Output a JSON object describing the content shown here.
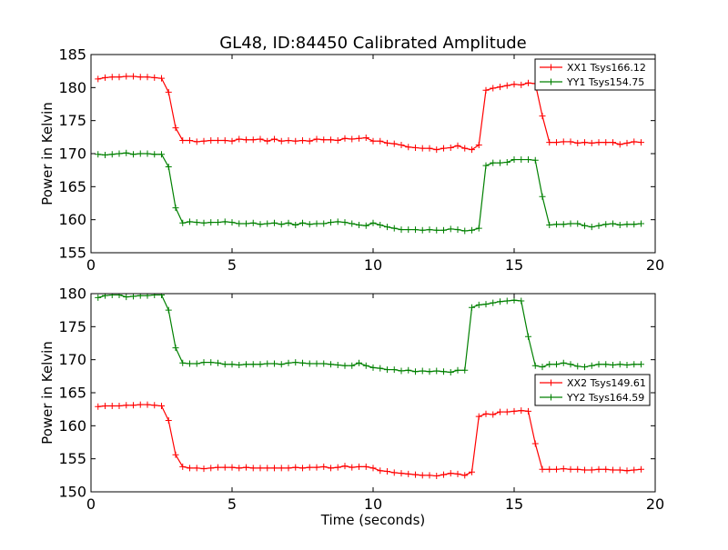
{
  "figure": {
    "title": "GL48, ID:84450 Calibrated Amplitude"
  },
  "chart_data": [
    {
      "type": "line",
      "title": "GL48, ID:84450 Calibrated Amplitude",
      "xlabel": "",
      "ylabel": "Power in Kelvin",
      "xlim": [
        0,
        20
      ],
      "ylim": [
        155,
        185
      ],
      "x_ticks": [
        0,
        5,
        10,
        15,
        20
      ],
      "y_ticks": [
        155,
        160,
        165,
        170,
        175,
        180,
        185
      ],
      "grid": false,
      "legend_position": "top-right",
      "x": [
        0.25,
        0.5,
        0.75,
        1.0,
        1.25,
        1.5,
        1.75,
        2.0,
        2.25,
        2.5,
        2.75,
        3.0,
        3.25,
        3.5,
        3.75,
        4.0,
        4.25,
        4.5,
        4.75,
        5.0,
        5.25,
        5.5,
        5.75,
        6.0,
        6.25,
        6.5,
        6.75,
        7.0,
        7.25,
        7.5,
        7.75,
        8.0,
        8.25,
        8.5,
        8.75,
        9.0,
        9.25,
        9.5,
        9.75,
        10.0,
        10.25,
        10.5,
        10.75,
        11.0,
        11.25,
        11.5,
        11.75,
        12.0,
        12.25,
        12.5,
        12.75,
        13.0,
        13.25,
        13.5,
        13.75,
        14.0,
        14.25,
        14.5,
        14.75,
        15.0,
        15.25,
        15.5,
        15.75,
        16.0,
        16.25,
        16.5,
        16.75,
        17.0,
        17.25,
        17.5,
        17.75,
        18.0,
        18.25,
        18.5,
        18.75,
        19.0,
        19.25,
        19.5
      ],
      "series": [
        {
          "name": "XX1 Tsys166.12",
          "color": "#ff0000",
          "values": [
            181.3,
            181.5,
            181.6,
            181.6,
            181.7,
            181.7,
            181.6,
            181.6,
            181.5,
            181.4,
            179.3,
            173.9,
            172.0,
            172.0,
            171.8,
            171.9,
            172.0,
            172.0,
            172.0,
            171.9,
            172.2,
            172.1,
            172.1,
            172.2,
            171.9,
            172.2,
            171.9,
            172.0,
            171.9,
            172.0,
            171.9,
            172.2,
            172.1,
            172.1,
            172.0,
            172.3,
            172.2,
            172.3,
            172.4,
            171.9,
            171.9,
            171.6,
            171.5,
            171.3,
            171.0,
            170.9,
            170.8,
            170.8,
            170.6,
            170.8,
            170.9,
            171.2,
            170.8,
            170.6,
            171.3,
            179.6,
            179.9,
            180.1,
            180.3,
            180.5,
            180.4,
            180.7,
            180.6,
            175.7,
            171.7,
            171.7,
            171.8,
            171.8,
            171.6,
            171.7,
            171.6,
            171.7,
            171.7,
            171.7,
            171.4,
            171.6,
            171.8,
            171.7
          ]
        },
        {
          "name": "YY1 Tsys154.75",
          "color": "#008000",
          "values": [
            169.9,
            169.8,
            169.9,
            170.0,
            170.1,
            169.9,
            170.0,
            170.0,
            169.9,
            169.9,
            168.0,
            161.8,
            159.5,
            159.7,
            159.6,
            159.5,
            159.6,
            159.6,
            159.7,
            159.6,
            159.4,
            159.4,
            159.5,
            159.3,
            159.4,
            159.5,
            159.3,
            159.5,
            159.2,
            159.5,
            159.3,
            159.4,
            159.4,
            159.6,
            159.7,
            159.6,
            159.4,
            159.2,
            159.1,
            159.5,
            159.2,
            158.9,
            158.7,
            158.5,
            158.5,
            158.5,
            158.4,
            158.5,
            158.4,
            158.4,
            158.6,
            158.5,
            158.3,
            158.4,
            158.7,
            168.2,
            168.6,
            168.6,
            168.7,
            169.1,
            169.1,
            169.1,
            169.0,
            163.5,
            159.2,
            159.3,
            159.3,
            159.4,
            159.4,
            159.1,
            158.9,
            159.1,
            159.3,
            159.4,
            159.2,
            159.3,
            159.3,
            159.4
          ]
        }
      ]
    },
    {
      "type": "line",
      "title": "",
      "xlabel": "Time (seconds)",
      "ylabel": "Power in Kelvin",
      "xlim": [
        0,
        20
      ],
      "ylim": [
        150,
        180
      ],
      "x_ticks": [
        0,
        5,
        10,
        15,
        20
      ],
      "y_ticks": [
        150,
        155,
        160,
        165,
        170,
        175,
        180
      ],
      "grid": false,
      "legend_position": "center-right",
      "x": [
        0.25,
        0.5,
        0.75,
        1.0,
        1.25,
        1.5,
        1.75,
        2.0,
        2.25,
        2.5,
        2.75,
        3.0,
        3.25,
        3.5,
        3.75,
        4.0,
        4.25,
        4.5,
        4.75,
        5.0,
        5.25,
        5.5,
        5.75,
        6.0,
        6.25,
        6.5,
        6.75,
        7.0,
        7.25,
        7.5,
        7.75,
        8.0,
        8.25,
        8.5,
        8.75,
        9.0,
        9.25,
        9.5,
        9.75,
        10.0,
        10.25,
        10.5,
        10.75,
        11.0,
        11.25,
        11.5,
        11.75,
        12.0,
        12.25,
        12.5,
        12.75,
        13.0,
        13.25,
        13.5,
        13.75,
        14.0,
        14.25,
        14.5,
        14.75,
        15.0,
        15.25,
        15.5,
        15.75,
        16.0,
        16.25,
        16.5,
        16.75,
        17.0,
        17.25,
        17.5,
        17.75,
        18.0,
        18.25,
        18.5,
        18.75,
        19.0,
        19.25,
        19.5
      ],
      "series": [
        {
          "name": "XX2 Tsys149.61",
          "color": "#ff0000",
          "values": [
            162.9,
            163.0,
            163.0,
            163.0,
            163.1,
            163.1,
            163.2,
            163.2,
            163.1,
            163.0,
            160.8,
            155.6,
            153.8,
            153.6,
            153.6,
            153.5,
            153.6,
            153.7,
            153.7,
            153.7,
            153.6,
            153.7,
            153.6,
            153.6,
            153.6,
            153.6,
            153.6,
            153.6,
            153.7,
            153.6,
            153.7,
            153.7,
            153.8,
            153.6,
            153.7,
            153.9,
            153.7,
            153.8,
            153.8,
            153.6,
            153.2,
            153.1,
            152.9,
            152.8,
            152.7,
            152.6,
            152.5,
            152.5,
            152.4,
            152.6,
            152.8,
            152.7,
            152.5,
            153.0,
            161.4,
            161.8,
            161.7,
            162.1,
            162.1,
            162.2,
            162.3,
            162.2,
            157.3,
            153.4,
            153.4,
            153.4,
            153.5,
            153.4,
            153.4,
            153.3,
            153.3,
            153.4,
            153.4,
            153.3,
            153.3,
            153.2,
            153.3,
            153.4
          ]
        },
        {
          "name": "YY2 Tsys164.59",
          "color": "#008000",
          "values": [
            179.4,
            179.7,
            179.8,
            179.8,
            179.5,
            179.6,
            179.7,
            179.7,
            179.8,
            179.8,
            177.5,
            171.8,
            169.5,
            169.4,
            169.4,
            169.6,
            169.6,
            169.5,
            169.3,
            169.3,
            169.2,
            169.3,
            169.3,
            169.3,
            169.4,
            169.4,
            169.3,
            169.5,
            169.6,
            169.5,
            169.4,
            169.4,
            169.4,
            169.3,
            169.2,
            169.1,
            169.1,
            169.5,
            169.1,
            168.8,
            168.7,
            168.5,
            168.5,
            168.3,
            168.4,
            168.2,
            168.3,
            168.2,
            168.3,
            168.2,
            168.1,
            168.4,
            168.4,
            177.9,
            178.3,
            178.4,
            178.6,
            178.8,
            178.9,
            179.0,
            178.9,
            173.5,
            169.1,
            168.9,
            169.3,
            169.3,
            169.5,
            169.3,
            169.0,
            168.9,
            169.1,
            169.3,
            169.3,
            169.2,
            169.3,
            169.2,
            169.3,
            169.3
          ]
        }
      ]
    }
  ]
}
